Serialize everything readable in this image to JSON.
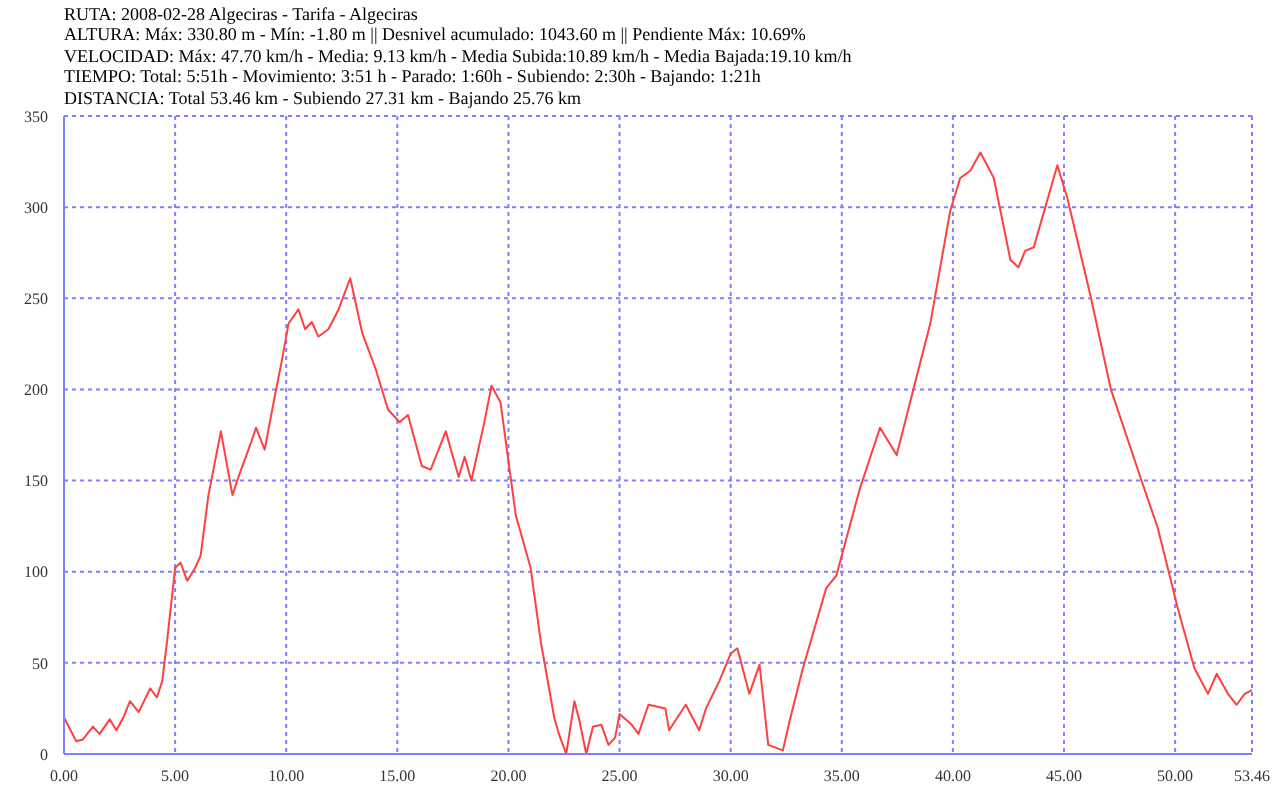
{
  "chart_data": {
    "type": "line",
    "title": "RUTA: 2008-02-28 Algeciras - Tarifa - Algeciras",
    "annotations": [
      "ALTURA: Máx: 330.80 m - Mín: -1.80 m || Desnivel acumulado: 1043.60 m || Pendiente Máx: 10.69%",
      "VELOCIDAD:  Máx: 47.70 km/h - Media: 9.13 km/h - Media Subida:10.89 km/h - Media Bajada:19.10 km/h",
      "TIEMPO: Total: 5:51h - Movimiento: 3:51 h - Parado: 1:60h  - Subiendo: 2:30h  - Bajando: 1:21h",
      "DISTANCIA: Total 53.46 km - Subiendo 27.31 km - Bajando 25.76 km"
    ],
    "x": [
      0,
      0.55,
      0.85,
      1.3,
      1.6,
      2.06,
      2.36,
      2.67,
      2.97,
      3.36,
      3.88,
      4.18,
      4.42,
      4.64,
      5.0,
      5.24,
      5.55,
      5.9,
      6.15,
      6.5,
      7.06,
      7.58,
      7.88,
      8.42,
      8.64,
      9.03,
      9.48,
      9.79,
      10.1,
      10.55,
      10.85,
      11.15,
      11.45,
      11.9,
      12.36,
      12.88,
      13.42,
      14.03,
      14.58,
      15.1,
      15.48,
      16.1,
      16.5,
      17.18,
      17.76,
      18.03,
      18.33,
      18.88,
      19.24,
      19.64,
      20.33,
      21.0,
      21.45,
      22.06,
      22.27,
      22.6,
      22.97,
      23.2,
      23.5,
      23.8,
      24.18,
      24.5,
      24.8,
      25.0,
      25.55,
      25.85,
      26.3,
      27.06,
      27.23,
      27.98,
      28.58,
      28.89,
      29.49,
      30.0,
      30.3,
      30.84,
      31.3,
      31.69,
      32.35,
      32.65,
      33.25,
      34.3,
      34.76,
      35.8,
      36.72,
      37.47,
      38.22,
      38.98,
      39.88,
      40.33,
      40.78,
      41.24,
      41.84,
      42.59,
      42.95,
      43.25,
      43.64,
      44.7,
      45.15,
      46.2,
      47.11,
      48.46,
      49.22,
      50.12,
      50.87,
      51.48,
      51.87,
      52.38,
      52.77,
      53.13,
      53.46
    ],
    "series": [
      {
        "color": "#ff4040",
        "values": [
          20,
          7,
          8,
          15,
          11,
          19,
          13,
          20,
          29,
          23,
          36,
          31,
          40,
          62,
          102,
          105,
          95,
          102,
          109,
          142,
          177,
          142,
          153,
          171,
          179,
          167,
          196,
          215,
          236,
          244,
          233,
          237,
          229,
          233,
          244,
          261,
          231,
          211,
          189,
          182,
          186,
          158,
          156,
          177,
          152,
          163,
          150,
          180,
          202,
          193,
          131,
          102,
          62,
          20,
          11,
          0,
          29,
          18,
          0,
          15,
          16,
          5,
          9,
          22,
          16,
          11,
          27,
          25,
          13,
          27,
          13,
          25,
          40,
          55,
          58,
          33,
          49,
          5,
          2,
          18,
          47,
          91,
          98,
          145,
          179,
          164,
          200,
          236,
          298,
          316,
          320,
          330,
          316,
          271,
          267,
          276,
          278,
          323,
          305,
          251,
          200,
          151,
          124,
          80,
          47,
          33,
          44,
          33,
          27,
          33,
          35
        ]
      }
    ],
    "xlim": [
      0,
      53.46
    ],
    "xticks": [
      {
        "value": 0,
        "label": "0.00"
      },
      {
        "value": 5,
        "label": "5.00"
      },
      {
        "value": 10,
        "label": "10.00"
      },
      {
        "value": 15,
        "label": "15.00"
      },
      {
        "value": 20,
        "label": "20.00"
      },
      {
        "value": 25,
        "label": "25.00"
      },
      {
        "value": 30,
        "label": "30.00"
      },
      {
        "value": 35,
        "label": "35.00"
      },
      {
        "value": 40,
        "label": "40.00"
      },
      {
        "value": 45,
        "label": "45.00"
      },
      {
        "value": 50,
        "label": "50.00"
      },
      {
        "value": 53.46,
        "label": "53.46"
      }
    ],
    "ylim": [
      0,
      350
    ],
    "yticks": [
      0,
      50,
      100,
      150,
      200,
      250,
      300,
      350
    ],
    "grid": true,
    "line_style": "solid",
    "marker": "none"
  }
}
